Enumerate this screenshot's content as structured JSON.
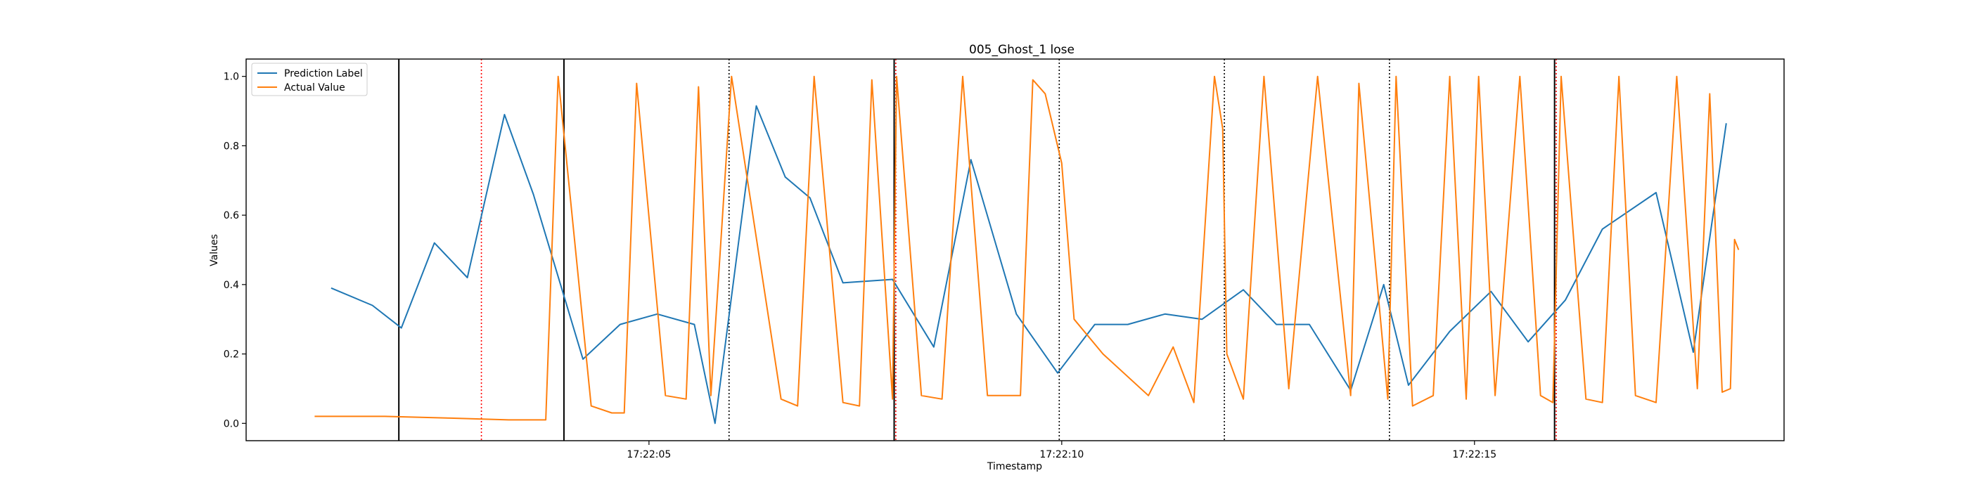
{
  "chart_data": {
    "type": "line",
    "title": "005_Ghost_1 lose",
    "xlabel": "Timestamp",
    "ylabel": "Values",
    "xlim": [
      "17:22:00.12",
      "17:22:18.75"
    ],
    "ylim": [
      -0.05,
      1.05
    ],
    "x_ticks": [
      "17:22:05",
      "17:22:10",
      "17:22:15"
    ],
    "y_ticks": [
      "0.0",
      "0.2",
      "0.4",
      "0.6",
      "0.8",
      "1.0"
    ],
    "grid": false,
    "legend_position": "top-left",
    "series": [
      {
        "name": "Prediction Label",
        "color": "#1f77b4",
        "x": [
          "17:22:01.15",
          "17:22:01.65",
          "17:22:02.00",
          "17:22:02.40",
          "17:22:02.80",
          "17:22:03.25",
          "17:22:03.60",
          "17:22:04.20",
          "17:22:04.65",
          "17:22:05.10",
          "17:22:05.55",
          "17:22:05.80",
          "17:22:06.30",
          "17:22:06.65",
          "17:22:06.95",
          "17:22:07.35",
          "17:22:07.95",
          "17:22:08.45",
          "17:22:08.90",
          "17:22:09.45",
          "17:22:09.95",
          "17:22:10.40",
          "17:22:10.80",
          "17:22:11.25",
          "17:22:11.70",
          "17:22:12.20",
          "17:22:12.60",
          "17:22:13.00",
          "17:22:13.50",
          "17:22:13.90",
          "17:22:14.20",
          "17:22:14.70",
          "17:22:15.20",
          "17:22:15.65",
          "17:22:16.10",
          "17:22:16.55",
          "17:22:17.20",
          "17:22:17.65",
          "17:22:18.05"
        ],
        "y": [
          0.39,
          0.34,
          0.275,
          0.52,
          0.42,
          0.89,
          0.66,
          0.185,
          0.285,
          0.315,
          0.285,
          0.0,
          0.915,
          0.71,
          0.65,
          0.405,
          0.415,
          0.22,
          0.76,
          0.315,
          0.145,
          0.285,
          0.285,
          0.315,
          0.3,
          0.385,
          0.285,
          0.285,
          0.095,
          0.4,
          0.11,
          0.265,
          0.38,
          0.235,
          0.355,
          0.56,
          0.665,
          0.205,
          0.865
        ]
      },
      {
        "name": "Actual Value",
        "color": "#ff7f0e",
        "x": [
          "17:22:00.95",
          "17:22:01.80",
          "17:22:02.60",
          "17:22:03.30",
          "17:22:03.75",
          "17:22:03.90",
          "17:22:04.30",
          "17:22:04.55",
          "17:22:04.70",
          "17:22:04.85",
          "17:22:05.20",
          "17:22:05.45",
          "17:22:05.60",
          "17:22:05.75",
          "17:22:06.00",
          "17:22:06.60",
          "17:22:06.80",
          "17:22:07.00",
          "17:22:07.35",
          "17:22:07.55",
          "17:22:07.70",
          "17:22:07.95",
          "17:22:08.00",
          "17:22:08.30",
          "17:22:08.55",
          "17:22:08.80",
          "17:22:09.10",
          "17:22:09.50",
          "17:22:09.65",
          "17:22:09.80",
          "17:22:10.00",
          "17:22:10.15",
          "17:22:10.50",
          "17:22:11.05",
          "17:22:11.35",
          "17:22:11.60",
          "17:22:11.85",
          "17:22:11.95",
          "17:22:12.00",
          "17:22:12.20",
          "17:22:12.45",
          "17:22:12.75",
          "17:22:13.10",
          "17:22:13.50",
          "17:22:13.60",
          "17:22:13.95",
          "17:22:14.05",
          "17:22:14.25",
          "17:22:14.50",
          "17:22:14.70",
          "17:22:14.90",
          "17:22:15.05",
          "17:22:15.25",
          "17:22:15.55",
          "17:22:15.80",
          "17:22:15.95",
          "17:22:16.05",
          "17:22:16.35",
          "17:22:16.55",
          "17:22:16.75",
          "17:22:16.95",
          "17:22:17.20",
          "17:22:17.45",
          "17:22:17.70",
          "17:22:17.85",
          "17:22:18.00",
          "17:22:18.10",
          "17:22:18.15",
          "17:22:18.20"
        ],
        "y": [
          0.02,
          0.02,
          0.015,
          0.01,
          0.01,
          1.0,
          0.05,
          0.03,
          0.03,
          0.98,
          0.08,
          0.07,
          0.97,
          0.08,
          1.0,
          0.07,
          0.05,
          1.0,
          0.06,
          0.05,
          0.99,
          0.07,
          1.0,
          0.08,
          0.07,
          1.0,
          0.08,
          0.08,
          0.99,
          0.95,
          0.75,
          0.3,
          0.2,
          0.08,
          0.22,
          0.06,
          1.0,
          0.85,
          0.2,
          0.07,
          1.0,
          0.1,
          1.0,
          0.08,
          0.98,
          0.07,
          1.0,
          0.05,
          0.08,
          1.0,
          0.07,
          1.0,
          0.08,
          1.0,
          0.08,
          0.06,
          1.0,
          0.07,
          0.06,
          1.0,
          0.08,
          0.06,
          1.0,
          0.1,
          0.95,
          0.09,
          0.1,
          0.53,
          0.5
        ]
      }
    ],
    "vertical_lines": [
      {
        "x": "17:22:01.97",
        "color": "#000000",
        "style": "solid"
      },
      {
        "x": "17:22:02.97",
        "color": "#ff0000",
        "style": "dotted"
      },
      {
        "x": "17:22:03.97",
        "color": "#000000",
        "style": "solid"
      },
      {
        "x": "17:22:05.97",
        "color": "#000000",
        "style": "dotted"
      },
      {
        "x": "17:22:07.97",
        "color": "#000000",
        "style": "solid"
      },
      {
        "x": "17:22:07.99",
        "color": "#ff0000",
        "style": "dotted"
      },
      {
        "x": "17:22:09.97",
        "color": "#000000",
        "style": "dotted"
      },
      {
        "x": "17:22:11.97",
        "color": "#000000",
        "style": "dotted"
      },
      {
        "x": "17:22:13.97",
        "color": "#000000",
        "style": "dotted"
      },
      {
        "x": "17:22:15.97",
        "color": "#000000",
        "style": "solid"
      },
      {
        "x": "17:22:15.99",
        "color": "#ff0000",
        "style": "dotted"
      }
    ]
  }
}
